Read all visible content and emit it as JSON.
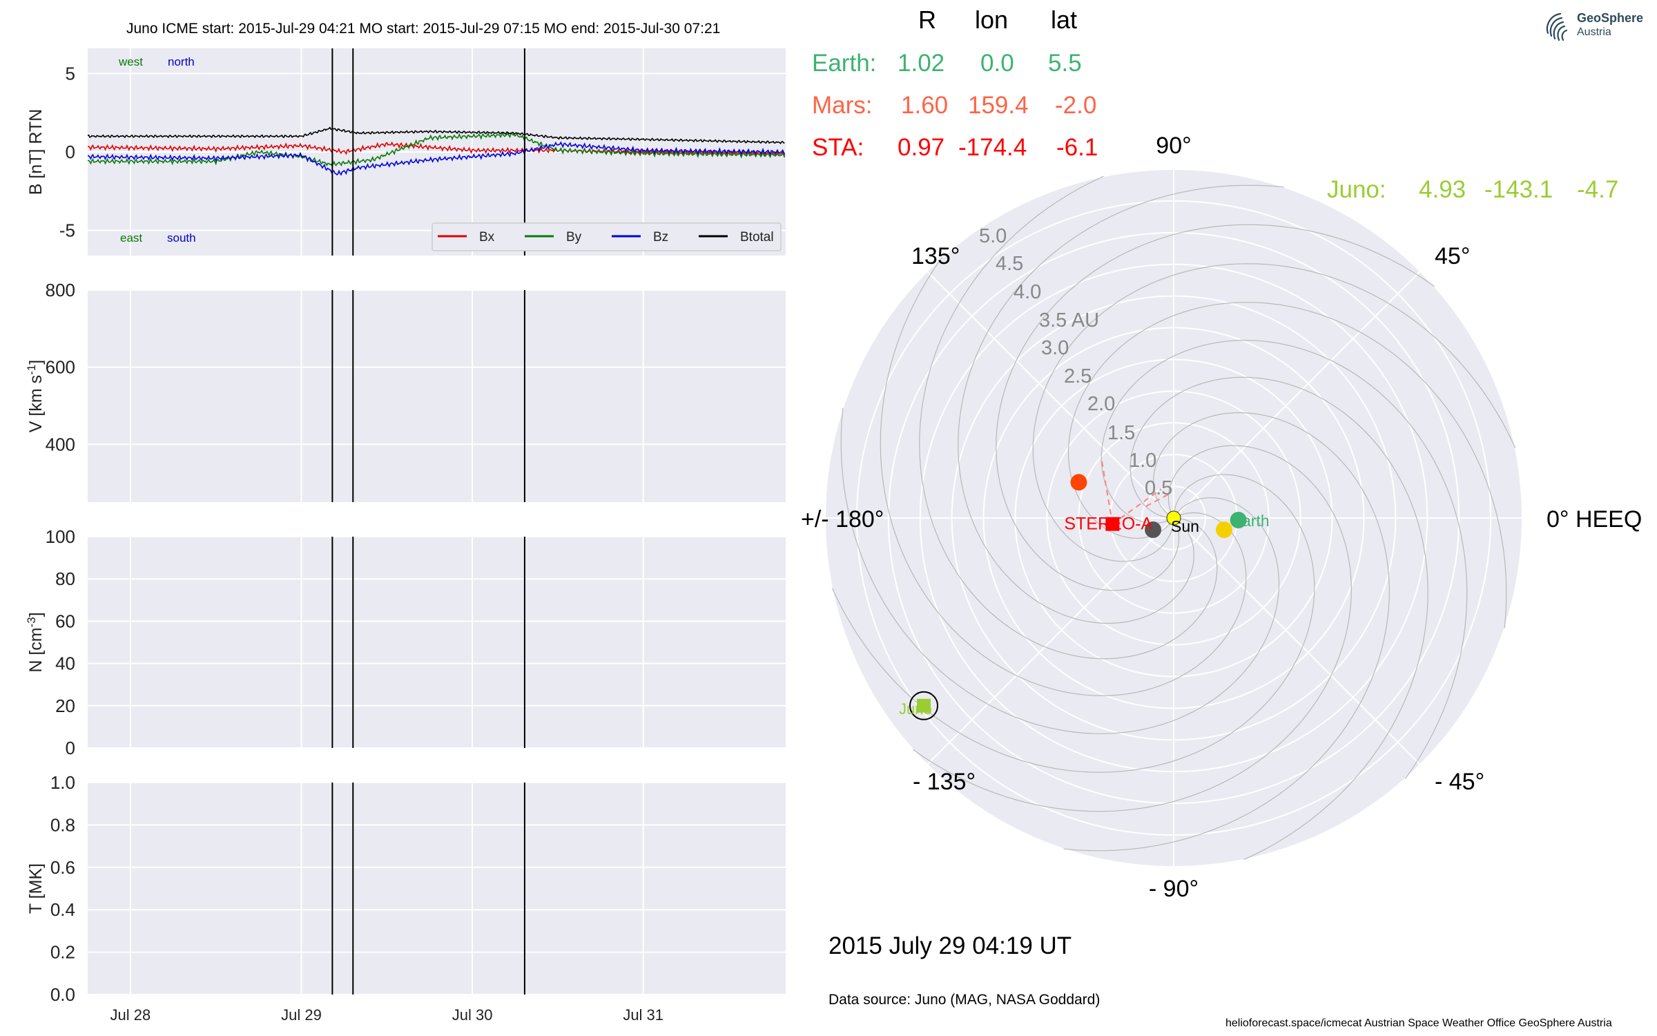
{
  "header": {
    "title": "Juno    ICME start: 2015-Jul-29 04:21   MO start: 2015-Jul-29 07:15   MO end: 2015-Jul-30 07:21"
  },
  "positions": {
    "columns": [
      "R",
      "lon",
      "lat"
    ],
    "rows": [
      {
        "name": "Earth:",
        "r": "1.02",
        "lon": "0.0",
        "lat": "5.5",
        "color": "#3cb371"
      },
      {
        "name": "Mars:",
        "r": "1.60",
        "lon": "159.4",
        "lat": "-2.0",
        "color": "#ff6347"
      },
      {
        "name": "STA:",
        "r": "0.97",
        "lon": "-174.4",
        "lat": "-6.1",
        "color": "#ff0000"
      },
      {
        "name": "Juno:",
        "r": "4.93",
        "lon": "-143.1",
        "lat": "-4.7",
        "color": "#9acd32"
      }
    ]
  },
  "footer": {
    "datetime": "2015 July 29  04:19 UT",
    "source": "Data source: Juno (MAG, NASA Goddard)",
    "credits": "helioforecast.space/icmecat   Austrian Space Weather Office   GeoSphere Austria"
  },
  "logo": {
    "line1": "GeoSphere",
    "line2": "Austria",
    "icon": "geosphere-logo-icon"
  },
  "chart_data": [
    {
      "type": "line",
      "panel": "magnetic-field",
      "ylabel": "B [nT] RTN",
      "ylim": [
        -6.6,
        6.6
      ],
      "yticks": [
        -5,
        0,
        5
      ],
      "xlim": [
        "2015-07-27T18:00",
        "2015-07-31T20:00"
      ],
      "xticks": [
        "Jul 28",
        "Jul 29",
        "Jul 30",
        "Jul 31"
      ],
      "annotations": {
        "west": "west",
        "north": "north",
        "east": "east",
        "south": "south"
      },
      "legend_position": "lower-right",
      "series": [
        {
          "name": "Bx",
          "color": "#e00000",
          "approx_points": [
            [
              "07-27T18",
              0.3
            ],
            [
              "07-28T12",
              0.2
            ],
            [
              "07-29T00",
              0.4
            ],
            [
              "07-29T06",
              0.0
            ],
            [
              "07-29T12",
              0.5
            ],
            [
              "07-30T00",
              0.1
            ],
            [
              "07-30T06",
              0.1
            ],
            [
              "07-30T12",
              0.1
            ],
            [
              "07-31T00",
              0.0
            ],
            [
              "07-31T20",
              -0.1
            ]
          ]
        },
        {
          "name": "By",
          "color": "#0a7a0a",
          "approx_points": [
            [
              "07-27T18",
              -0.6
            ],
            [
              "07-28T12",
              -0.6
            ],
            [
              "07-28T18",
              0.0
            ],
            [
              "07-29T00",
              -0.3
            ],
            [
              "07-29T04",
              -0.8
            ],
            [
              "07-29T10",
              -0.5
            ],
            [
              "07-29T18",
              0.9
            ],
            [
              "07-30T06",
              1.1
            ],
            [
              "07-30T12",
              0.1
            ],
            [
              "07-31T00",
              -0.1
            ],
            [
              "07-31T20",
              -0.2
            ]
          ]
        },
        {
          "name": "Bz",
          "color": "#0000e0",
          "approx_points": [
            [
              "07-27T18",
              -0.3
            ],
            [
              "07-28T12",
              -0.4
            ],
            [
              "07-29T00",
              -0.2
            ],
            [
              "07-29T05",
              -1.4
            ],
            [
              "07-29T08",
              -1.0
            ],
            [
              "07-29T18",
              -0.5
            ],
            [
              "07-30T06",
              -0.1
            ],
            [
              "07-30T12",
              0.5
            ],
            [
              "07-31T00",
              0.1
            ],
            [
              "07-31T20",
              0.0
            ]
          ]
        },
        {
          "name": "Btotal",
          "color": "#000000",
          "approx_points": [
            [
              "07-27T18",
              1.0
            ],
            [
              "07-28T12",
              1.0
            ],
            [
              "07-29T00",
              1.0
            ],
            [
              "07-29T04",
              1.5
            ],
            [
              "07-29T08",
              1.2
            ],
            [
              "07-29T18",
              1.3
            ],
            [
              "07-30T06",
              1.2
            ],
            [
              "07-30T12",
              0.9
            ],
            [
              "07-31T00",
              0.8
            ],
            [
              "07-31T20",
              0.6
            ]
          ]
        }
      ]
    },
    {
      "type": "line",
      "panel": "speed",
      "ylabel": "V [km s$^{-1}$]",
      "ylim": [
        250,
        800
      ],
      "yticks": [
        400,
        600,
        800
      ],
      "series": []
    },
    {
      "type": "line",
      "panel": "density",
      "ylabel": "N [cm$^{-3}$]",
      "ylim": [
        0,
        100
      ],
      "yticks": [
        0,
        20,
        40,
        60,
        80,
        100
      ],
      "series": []
    },
    {
      "type": "line",
      "panel": "temperature",
      "ylabel": "T [MK]",
      "ylim": [
        0,
        1.0
      ],
      "yticks": [
        0.0,
        0.2,
        0.4,
        0.6,
        0.8,
        1.0
      ],
      "series": []
    },
    {
      "type": "polar",
      "panel": "heliosphere-map",
      "rlim": [
        0,
        5.5
      ],
      "rticks": [
        "0.5",
        "1.0",
        "1.5",
        "2.0",
        "2.5",
        "3.0",
        "3.5 AU",
        "4.0",
        "4.5",
        "5.0"
      ],
      "angle_labels": [
        "0° HEEQ",
        "45°",
        "90°",
        "135°",
        "+/- 180°",
        "- 135°",
        "- 90°",
        "- 45°"
      ],
      "bodies": [
        {
          "name": "Sun",
          "r": 0,
          "lon": 0,
          "color": "#ffff00"
        },
        {
          "name": "Earth",
          "r": 1.02,
          "lon": 0.0,
          "color": "#3cb371"
        },
        {
          "name": "Mars",
          "r": 1.6,
          "lon": 159.4,
          "color": "#ff4500"
        },
        {
          "name": "STEREO-A",
          "r": 0.97,
          "lon": -174.4,
          "color": "#ff0000"
        },
        {
          "name": "Juno",
          "r": 4.93,
          "lon": -143.1,
          "color": "#9acd32"
        }
      ]
    }
  ]
}
